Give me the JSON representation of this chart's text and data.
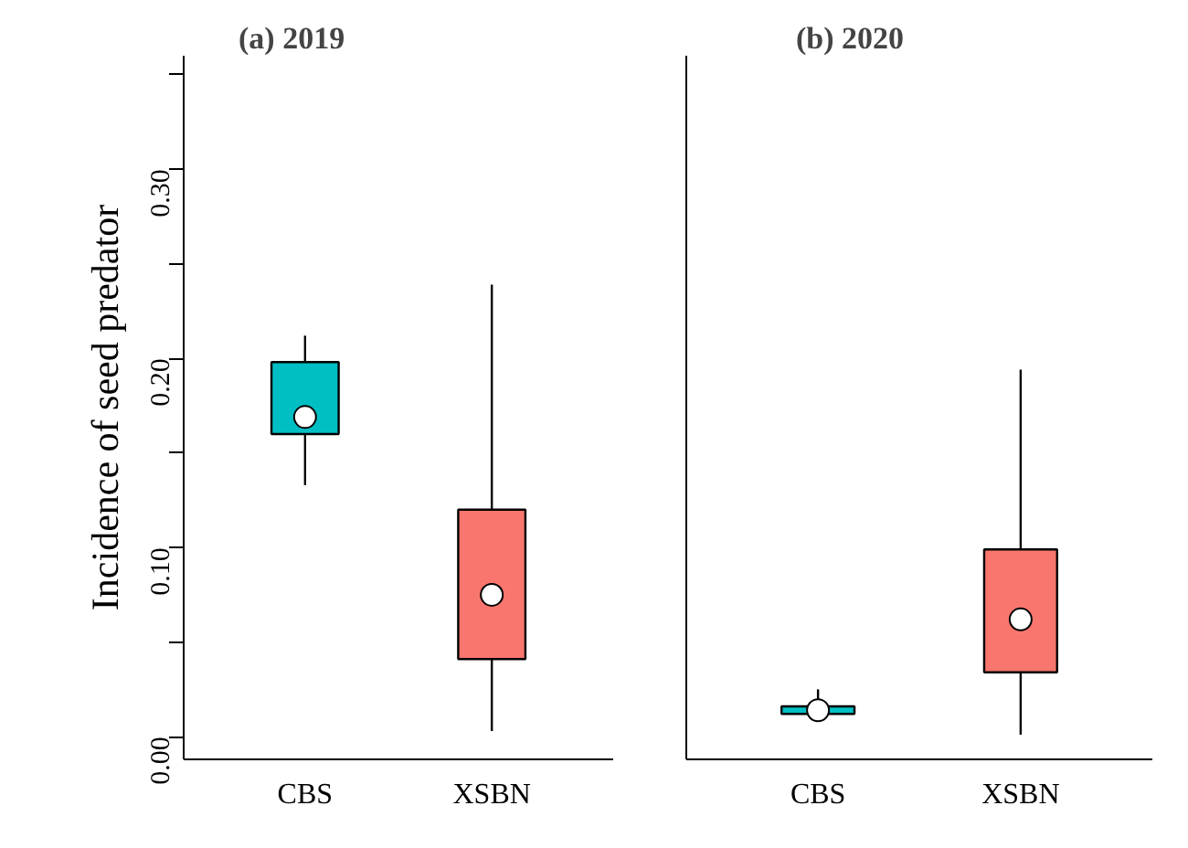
{
  "chart_data": [
    {
      "type": "box",
      "title": "(a) 2019",
      "ylabel": "Incidence of seed predator",
      "categories": [
        "CBS",
        "XSBN"
      ],
      "colors": [
        "#00bfc4",
        "#f8766d"
      ],
      "boxes": [
        {
          "low": 0.133,
          "q1": 0.16,
          "median": 0.169,
          "q3": 0.198,
          "high": 0.212
        },
        {
          "low": 0.003,
          "q1": 0.041,
          "median": 0.075,
          "q3": 0.12,
          "high": 0.239
        }
      ],
      "ylim": [
        -0.012,
        0.36
      ],
      "yticks": [
        {
          "value": 0,
          "label": "0.00"
        },
        {
          "value": 0.05,
          "label": null
        },
        {
          "value": 0.1,
          "label": "0.10"
        },
        {
          "value": 0.15,
          "label": null
        },
        {
          "value": 0.2,
          "label": "0.20"
        },
        {
          "value": 0.25,
          "label": null
        },
        {
          "value": 0.3,
          "label": "0.30"
        },
        {
          "value": 0.35,
          "label": null
        }
      ],
      "grid": false
    },
    {
      "type": "box",
      "title": "(b) 2020",
      "categories": [
        "CBS",
        "XSBN"
      ],
      "colors": [
        "#00bfc4",
        "#f8766d"
      ],
      "boxes": [
        {
          "low": 0.008,
          "q1": 0.012,
          "median": 0.014,
          "q3": 0.016,
          "high": 0.025
        },
        {
          "low": 0.001,
          "q1": 0.034,
          "median": 0.062,
          "q3": 0.099,
          "high": 0.194
        }
      ],
      "ylim": [
        -0.012,
        0.36
      ],
      "tick_labels": "x",
      "grid": false
    }
  ]
}
